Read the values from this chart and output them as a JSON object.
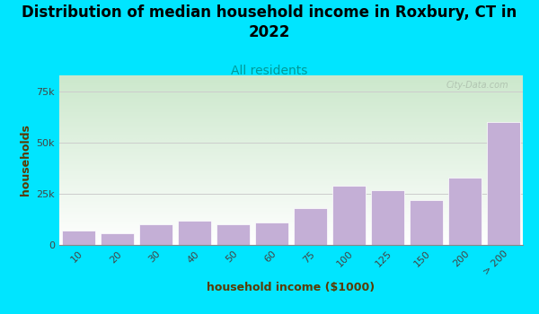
{
  "title": "Distribution of median household income in Roxbury, CT in\n2022",
  "subtitle": "All residents",
  "xlabel": "household income ($1000)",
  "ylabel": "households",
  "categories": [
    "10",
    "20",
    "30",
    "40",
    "50",
    "60",
    "75",
    "100",
    "125",
    "150",
    "200",
    "> 200"
  ],
  "values": [
    7000,
    5500,
    10000,
    12000,
    10000,
    11000,
    18000,
    29000,
    27000,
    22000,
    33000,
    60000
  ],
  "bar_color": "#c4afd6",
  "bar_edge_color": "#ffffff",
  "background_outer": "#00e5ff",
  "plot_bg_top": "#cce8cc",
  "ytick_labels": [
    "0",
    "25k",
    "50k",
    "75k"
  ],
  "ytick_values": [
    0,
    25000,
    50000,
    75000
  ],
  "ylim": [
    0,
    83000
  ],
  "title_fontsize": 12,
  "subtitle_fontsize": 10,
  "axis_label_fontsize": 9,
  "tick_fontsize": 8,
  "title_color": "#000000",
  "subtitle_color": "#009999",
  "axis_label_color": "#5a3a00",
  "watermark_text": "City-Data.com",
  "watermark_color": "#aabbaa"
}
